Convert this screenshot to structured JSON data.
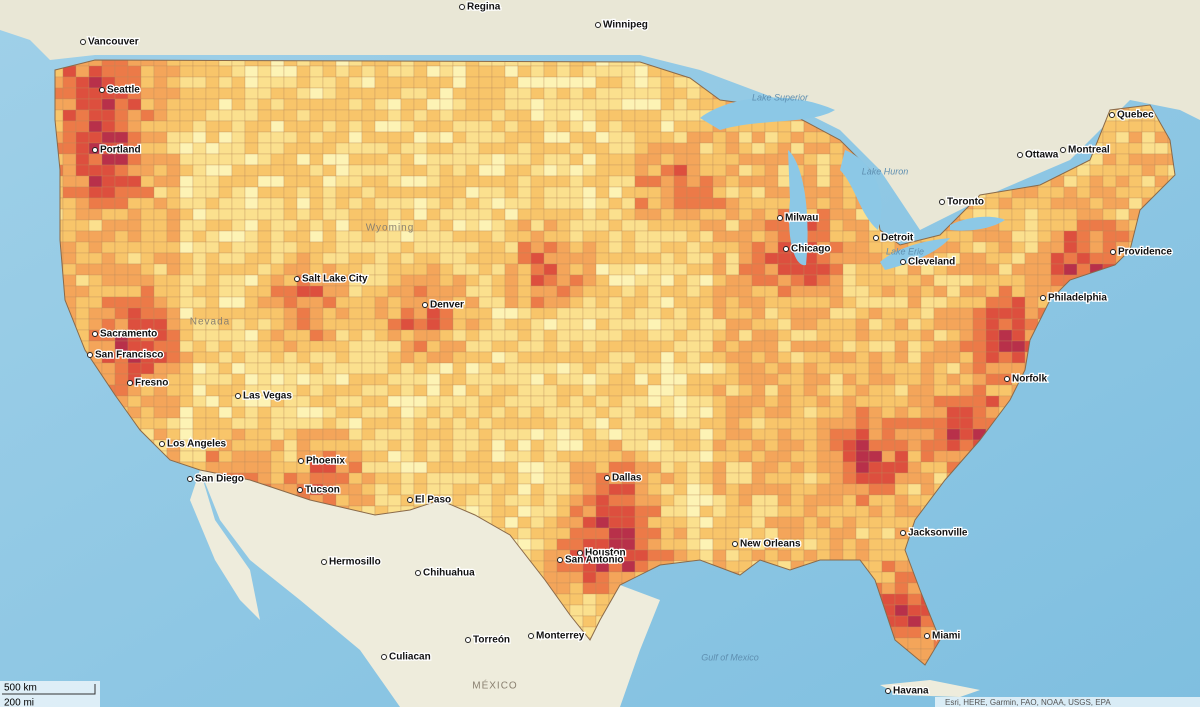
{
  "cities": [
    "Regina",
    "Winnipeg",
    "Vancouver",
    "Seattle",
    "Portland",
    "Quebec",
    "Ottawa",
    "Montreal",
    "Toronto",
    "Milwau",
    "Chicago",
    "Detroit",
    "Cleveland",
    "Providence",
    "Philadelphia",
    "Norfolk",
    "Sacramento",
    "San Francisco",
    "Fresno",
    "Las Vegas",
    "Los Angeles",
    "San Diego",
    "Phoenix",
    "Tucson",
    "El Paso",
    "Salt Lake City",
    "Denver",
    "Dallas",
    "Houston",
    "San Antonio",
    "New Orleans",
    "Jacksonville",
    "Miami",
    "Havana",
    "Hermosillo",
    "Chihuahua",
    "Culiacan",
    "Torreón",
    "Monterrey"
  ],
  "water_labels": [
    "Lake Superior",
    "Lake Huron",
    "Lake Erie",
    "Gulf of Mexico"
  ],
  "region_labels": [
    "MÉXICO",
    "Wyoming",
    "Nevada"
  ],
  "scale_bar": {
    "metric": "500 km",
    "imperial": "200 mi"
  },
  "attribution": "Esri, HERE, Garmin, FAO, NOAA, USGS, EPA"
}
